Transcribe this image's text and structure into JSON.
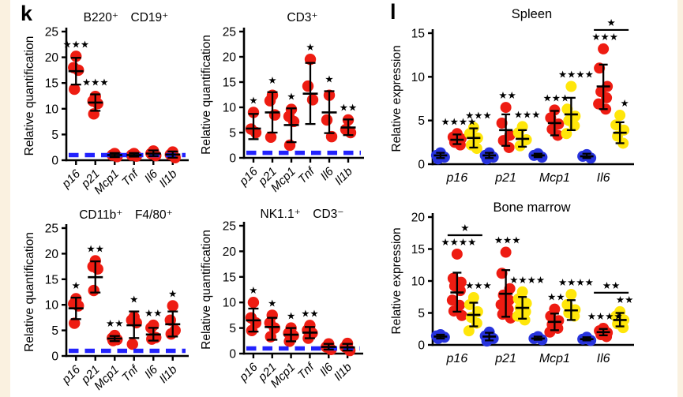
{
  "panels": {
    "k": {
      "label": "k"
    },
    "l": {
      "label": "l"
    }
  },
  "colors": {
    "red": "#ee1c12",
    "yellow": "#ffe60a",
    "blue": "#2733dd",
    "ref_line": "#2222fe",
    "axis": "#000000",
    "edge_strip": "#faf1e0",
    "page_bg": "#ffffff"
  },
  "chart_data": [
    {
      "id": "b220_cd19",
      "panel": "k",
      "type": "scatter",
      "title": "B220⁺ CD19⁺",
      "ylabel": "Relative quantification",
      "ylim": [
        0,
        25
      ],
      "yticks": [
        0,
        5,
        10,
        15,
        20,
        25
      ],
      "reference_line": 1,
      "categories": [
        "p16",
        "p21",
        "Mcp1",
        "Tnf",
        "Il6",
        "Il1b"
      ],
      "series_order": [
        "red"
      ],
      "groups": [
        {
          "category": "p16",
          "series": {
            "red": {
              "points": [
                20.2,
                18.0,
                17.5,
                13.8
              ],
              "mean": 17.3,
              "sd_lo": 14.7,
              "sd_hi": 19.9,
              "sig": "***"
            }
          }
        },
        {
          "category": "p21",
          "series": {
            "red": {
              "points": [
                12.4,
                11.5,
                11.0,
                9.0
              ],
              "mean": 11.2,
              "sd_lo": 9.6,
              "sd_hi": 12.8,
              "sig": "***"
            }
          }
        },
        {
          "category": "Mcp1",
          "series": {
            "red": {
              "points": [
                1.3,
                1.0,
                0.7
              ],
              "mean": 1.0,
              "sd_lo": 0.6,
              "sd_hi": 1.4
            }
          }
        },
        {
          "category": "Tnf",
          "series": {
            "red": {
              "points": [
                1.3,
                1.0,
                0.8
              ],
              "mean": 1.0,
              "sd_lo": 0.7,
              "sd_hi": 1.4
            }
          }
        },
        {
          "category": "Il6",
          "series": {
            "red": {
              "points": [
                1.8,
                1.3,
                0.9
              ],
              "mean": 1.3,
              "sd_lo": 0.8,
              "sd_hi": 1.9
            }
          }
        },
        {
          "category": "Il1b",
          "series": {
            "red": {
              "points": [
                1.6,
                1.1,
                0.5
              ],
              "mean": 1.1,
              "sd_lo": 0.5,
              "sd_hi": 1.7
            }
          }
        }
      ]
    },
    {
      "id": "cd3",
      "panel": "k",
      "type": "scatter",
      "title": "CD3⁺",
      "ylabel": "Relative quantification",
      "ylim": [
        0,
        25
      ],
      "yticks": [
        0,
        5,
        10,
        15,
        20,
        25
      ],
      "reference_line": 1,
      "categories": [
        "p16",
        "p21",
        "Mcp1",
        "Tnf",
        "Il6",
        "Il1b"
      ],
      "series_order": [
        "red"
      ],
      "groups": [
        {
          "category": "p16",
          "series": {
            "red": {
              "points": [
                9.0,
                5.7,
                5.0
              ],
              "mean": 5.8,
              "sd_lo": 3.7,
              "sd_hi": 8.7,
              "sig": "*"
            }
          }
        },
        {
          "category": "p21",
          "series": {
            "red": {
              "points": [
                12.4,
                11.3,
                8.5,
                4.1
              ],
              "mean": 9.0,
              "sd_lo": 5.0,
              "sd_hi": 13.0,
              "sig": "*"
            }
          }
        },
        {
          "category": "Mcp1",
          "series": {
            "red": {
              "points": [
                9.6,
                8.2,
                7.2,
                2.5
              ],
              "mean": 6.5,
              "sd_lo": 3.1,
              "sd_hi": 9.8,
              "sig": "*"
            }
          }
        },
        {
          "category": "Tnf",
          "series": {
            "red": {
              "points": [
                19.5,
                14.2,
                11.5
              ],
              "mean": 12.7,
              "sd_lo": 6.7,
              "sd_hi": 18.8,
              "sig": "*"
            }
          }
        },
        {
          "category": "Il6",
          "series": {
            "red": {
              "points": [
                12.4,
                7.5,
                4.2
              ],
              "mean": 9.0,
              "sd_lo": 4.9,
              "sd_hi": 13.2,
              "sig": "*"
            }
          }
        },
        {
          "category": "Il1b",
          "series": {
            "red": {
              "points": [
                7.5,
                5.6,
                5.0
              ],
              "mean": 6.0,
              "sd_lo": 4.5,
              "sd_hi": 7.6,
              "sig": "**"
            }
          }
        }
      ]
    },
    {
      "id": "cd11b_f480",
      "panel": "k",
      "type": "scatter",
      "title": "CD11b⁺ F4/80⁺",
      "ylabel": "Relative quantification",
      "ylim": [
        0,
        25
      ],
      "yticks": [
        0,
        5,
        10,
        15,
        20,
        25
      ],
      "reference_line": 1,
      "categories": [
        "p16",
        "p21",
        "Mcp1",
        "Tnf",
        "Il6",
        "Il1b"
      ],
      "series_order": [
        "red"
      ],
      "groups": [
        {
          "category": "p16",
          "series": {
            "red": {
              "points": [
                11.2,
                10.2,
                9.8,
                6.4
              ],
              "mean": 9.3,
              "sd_lo": 7.2,
              "sd_hi": 11.4,
              "sig": "*"
            }
          }
        },
        {
          "category": "p21",
          "series": {
            "red": {
              "points": [
                18.6,
                17.5,
                17.0,
                12.8
              ],
              "mean": 15.4,
              "sd_lo": 12.4,
              "sd_hi": 18.5,
              "sig": "**"
            }
          }
        },
        {
          "category": "Mcp1",
          "series": {
            "red": {
              "points": [
                4.0,
                3.5,
                3.2,
                3.0
              ],
              "mean": 3.4,
              "sd_lo": 2.9,
              "sd_hi": 3.9,
              "sig": "**"
            }
          }
        },
        {
          "category": "Tnf",
          "series": {
            "red": {
              "points": [
                7.6,
                7.0,
                6.5,
                2.3
              ],
              "mean": 6.0,
              "sd_lo": 3.5,
              "sd_hi": 8.7,
              "sig": "*"
            }
          }
        },
        {
          "category": "Il6",
          "series": {
            "red": {
              "points": [
                6.0,
                5.5,
                3.6,
                3.3
              ],
              "mean": 4.2,
              "sd_lo": 3.0,
              "sd_hi": 5.5,
              "sig": "**"
            }
          }
        },
        {
          "category": "Il1b",
          "series": {
            "red": {
              "points": [
                9.8,
                7.0,
                5.0,
                4.3
              ],
              "mean": 6.2,
              "sd_lo": 3.8,
              "sd_hi": 8.7,
              "sig": "*"
            }
          }
        }
      ]
    },
    {
      "id": "nk11_cd3",
      "panel": "k",
      "type": "scatter",
      "title": "NK1.1⁺ CD3⁻",
      "ylabel": "Relative quantification",
      "ylim": [
        0,
        25
      ],
      "yticks": [
        0,
        5,
        10,
        15,
        20,
        25
      ],
      "reference_line": 1,
      "categories": [
        "p16",
        "p21",
        "Mcp1",
        "Tnf",
        "Il6",
        "Il1b"
      ],
      "series_order": [
        "red"
      ],
      "groups": [
        {
          "category": "p16",
          "series": {
            "red": {
              "points": [
                10.0,
                7.0,
                6.0,
                4.5
              ],
              "mean": 6.5,
              "sd_lo": 4.3,
              "sd_hi": 8.8,
              "sig": "*"
            }
          }
        },
        {
          "category": "p21",
          "series": {
            "red": {
              "points": [
                7.5,
                6.0,
                5.0,
                3.3
              ],
              "mean": 5.2,
              "sd_lo": 2.7,
              "sd_hi": 7.0,
              "sig": "*"
            }
          }
        },
        {
          "category": "Mcp1",
          "series": {
            "red": {
              "points": [
                5.0,
                4.0,
                3.5,
                2.4
              ],
              "mean": 3.7,
              "sd_lo": 2.4,
              "sd_hi": 5.0,
              "sig": "*"
            }
          }
        },
        {
          "category": "Tnf",
          "series": {
            "red": {
              "points": [
                5.5,
                4.6,
                4.0,
                3.0
              ],
              "mean": 4.1,
              "sd_lo": 3.0,
              "sd_hi": 5.2,
              "sig": "**"
            }
          }
        },
        {
          "category": "Il6",
          "series": {
            "red": {
              "points": [
                1.9,
                1.3,
                0.8
              ],
              "mean": 1.3,
              "sd_lo": 0.8,
              "sd_hi": 1.9
            }
          }
        },
        {
          "category": "Il1b",
          "series": {
            "red": {
              "points": [
                2.0,
                1.3,
                0.6
              ],
              "mean": 1.2,
              "sd_lo": 0.6,
              "sd_hi": 1.9
            }
          }
        }
      ]
    },
    {
      "id": "spleen",
      "panel": "l",
      "type": "scatter",
      "title": "Spleen",
      "ylabel": "Relative expression",
      "ylim": [
        0,
        15
      ],
      "yticks": [
        0,
        5,
        10,
        15
      ],
      "categories": [
        "p16",
        "p21",
        "Mcp1",
        "Il6"
      ],
      "series_order": [
        "blue",
        "red",
        "yellow"
      ],
      "groups": [
        {
          "category": "p16",
          "series": {
            "blue": {
              "points": [
                1.3,
                1.0,
                0.8,
                0.6
              ],
              "mean": 1.0,
              "sd_lo": 0.7,
              "sd_hi": 1.3
            },
            "red": {
              "points": [
                3.5,
                3.1,
                2.9,
                2.5,
                2.2
              ],
              "mean": 2.8,
              "sd_lo": 2.3,
              "sd_hi": 3.4,
              "sig": "****"
            },
            "yellow": {
              "points": [
                4.2,
                3.5,
                3.0,
                2.2,
                1.8
              ],
              "mean": 3.0,
              "sd_lo": 1.9,
              "sd_hi": 4.1,
              "sig": "***"
            }
          }
        },
        {
          "category": "p21",
          "series": {
            "blue": {
              "points": [
                1.3,
                1.0,
                0.8,
                0.6
              ],
              "mean": 1.0,
              "sd_lo": 0.7,
              "sd_hi": 1.3
            },
            "red": {
              "points": [
                6.5,
                4.7,
                3.3,
                2.7,
                1.9
              ],
              "mean": 3.9,
              "sd_lo": 2.1,
              "sd_hi": 5.7,
              "sig": "**"
            },
            "yellow": {
              "points": [
                4.3,
                3.6,
                2.8,
                2.1
              ],
              "mean": 2.9,
              "sd_lo": 2.0,
              "sd_hi": 3.9,
              "sig": "***"
            }
          }
        },
        {
          "category": "Mcp1",
          "series": {
            "blue": {
              "points": [
                1.2,
                1.0,
                0.8
              ],
              "mean": 1.0,
              "sd_lo": 0.8,
              "sd_hi": 1.2
            },
            "red": {
              "points": [
                6.2,
                5.3,
                4.6,
                4.0,
                3.3
              ],
              "mean": 4.7,
              "sd_lo": 3.3,
              "sd_hi": 6.1,
              "sig": "***"
            },
            "yellow": {
              "points": [
                8.9,
                6.3,
                5.5,
                5.0,
                4.4,
                3.5
              ],
              "mean": 5.7,
              "sd_lo": 3.9,
              "sd_hi": 7.6,
              "sig": "****"
            }
          }
        },
        {
          "category": "Il6",
          "bracket": "*",
          "series": {
            "blue": {
              "points": [
                1.1,
                0.9,
                0.7
              ],
              "mean": 0.9,
              "sd_lo": 0.7,
              "sd_hi": 1.2
            },
            "red": {
              "points": [
                13.2,
                11.0,
                8.9,
                8.3,
                7.6,
                6.9,
                6.3
              ],
              "mean": 8.9,
              "sd_lo": 6.3,
              "sd_hi": 11.4,
              "sig": "***"
            },
            "yellow": {
              "points": [
                5.6,
                4.5,
                3.9,
                3.2,
                2.4
              ],
              "mean": 3.6,
              "sd_lo": 2.4,
              "sd_hi": 4.8,
              "sig": "*"
            }
          }
        }
      ]
    },
    {
      "id": "bone_marrow",
      "panel": "l",
      "type": "scatter",
      "title": "Bone marrow",
      "ylabel": "Relative expression",
      "ylim": [
        0,
        20
      ],
      "yticks": [
        0,
        5,
        10,
        15,
        20
      ],
      "categories": [
        "p16",
        "p21",
        "Mcp1",
        "Il6"
      ],
      "series_order": [
        "blue",
        "red",
        "yellow"
      ],
      "groups": [
        {
          "category": "p16",
          "bracket": "*",
          "series": {
            "blue": {
              "points": [
                1.6,
                1.4,
                1.2,
                1.0
              ],
              "mean": 1.3,
              "sd_lo": 1.0,
              "sd_hi": 1.6
            },
            "red": {
              "points": [
                14.2,
                10.4,
                9.8,
                9.2,
                8.5,
                7.0,
                6.2,
                5.3,
                4.6
              ],
              "mean": 8.2,
              "sd_lo": 5.2,
              "sd_hi": 11.3,
              "sig": "****"
            },
            "yellow": {
              "points": [
                7.4,
                6.3,
                5.2,
                4.3,
                3.4,
                2.2
              ],
              "mean": 4.7,
              "sd_lo": 2.9,
              "sd_hi": 6.6,
              "sig": "***"
            }
          }
        },
        {
          "category": "p21",
          "series": {
            "blue": {
              "points": [
                2.0,
                1.4,
                1.0,
                0.6
              ],
              "mean": 1.3,
              "sd_lo": 0.7,
              "sd_hi": 1.9
            },
            "red": {
              "points": [
                14.5,
                11.2,
                8.8,
                7.8,
                7.0,
                6.3,
                5.6,
                4.8,
                4.2
              ],
              "mean": 8.0,
              "sd_lo": 4.4,
              "sd_hi": 11.7,
              "sig": "***"
            },
            "yellow": {
              "points": [
                8.3,
                7.2,
                6.5,
                5.8,
                5.2,
                4.5,
                3.9
              ],
              "mean": 5.8,
              "sd_lo": 4.1,
              "sd_hi": 7.5,
              "sig": "****"
            }
          }
        },
        {
          "category": "Mcp1",
          "series": {
            "blue": {
              "points": [
                1.3,
                1.0,
                0.8
              ],
              "mean": 1.0,
              "sd_lo": 0.8,
              "sd_hi": 1.3
            },
            "red": {
              "points": [
                5.6,
                4.5,
                3.8,
                3.2,
                2.6,
                2.0
              ],
              "mean": 3.6,
              "sd_lo": 2.3,
              "sd_hi": 4.9,
              "sig": "**"
            },
            "yellow": {
              "points": [
                7.9,
                6.3,
                5.5,
                5.0,
                4.5
              ],
              "mean": 5.4,
              "sd_lo": 3.9,
              "sd_hi": 7.0,
              "sig": "****"
            }
          }
        },
        {
          "category": "Il6",
          "bracket": "**",
          "series": {
            "blue": {
              "points": [
                1.2,
                0.9,
                0.7
              ],
              "mean": 0.9,
              "sd_lo": 0.7,
              "sd_hi": 1.2
            },
            "red": {
              "points": [
                2.6,
                2.2,
                1.9,
                1.6,
                1.3
              ],
              "mean": 2.0,
              "sd_lo": 1.5,
              "sd_hi": 2.5,
              "sig": "****"
            },
            "yellow": {
              "points": [
                5.2,
                4.5,
                3.9,
                3.3,
                2.7
              ],
              "mean": 3.9,
              "sd_lo": 2.9,
              "sd_hi": 5.0,
              "sig": "**"
            }
          }
        }
      ]
    }
  ]
}
